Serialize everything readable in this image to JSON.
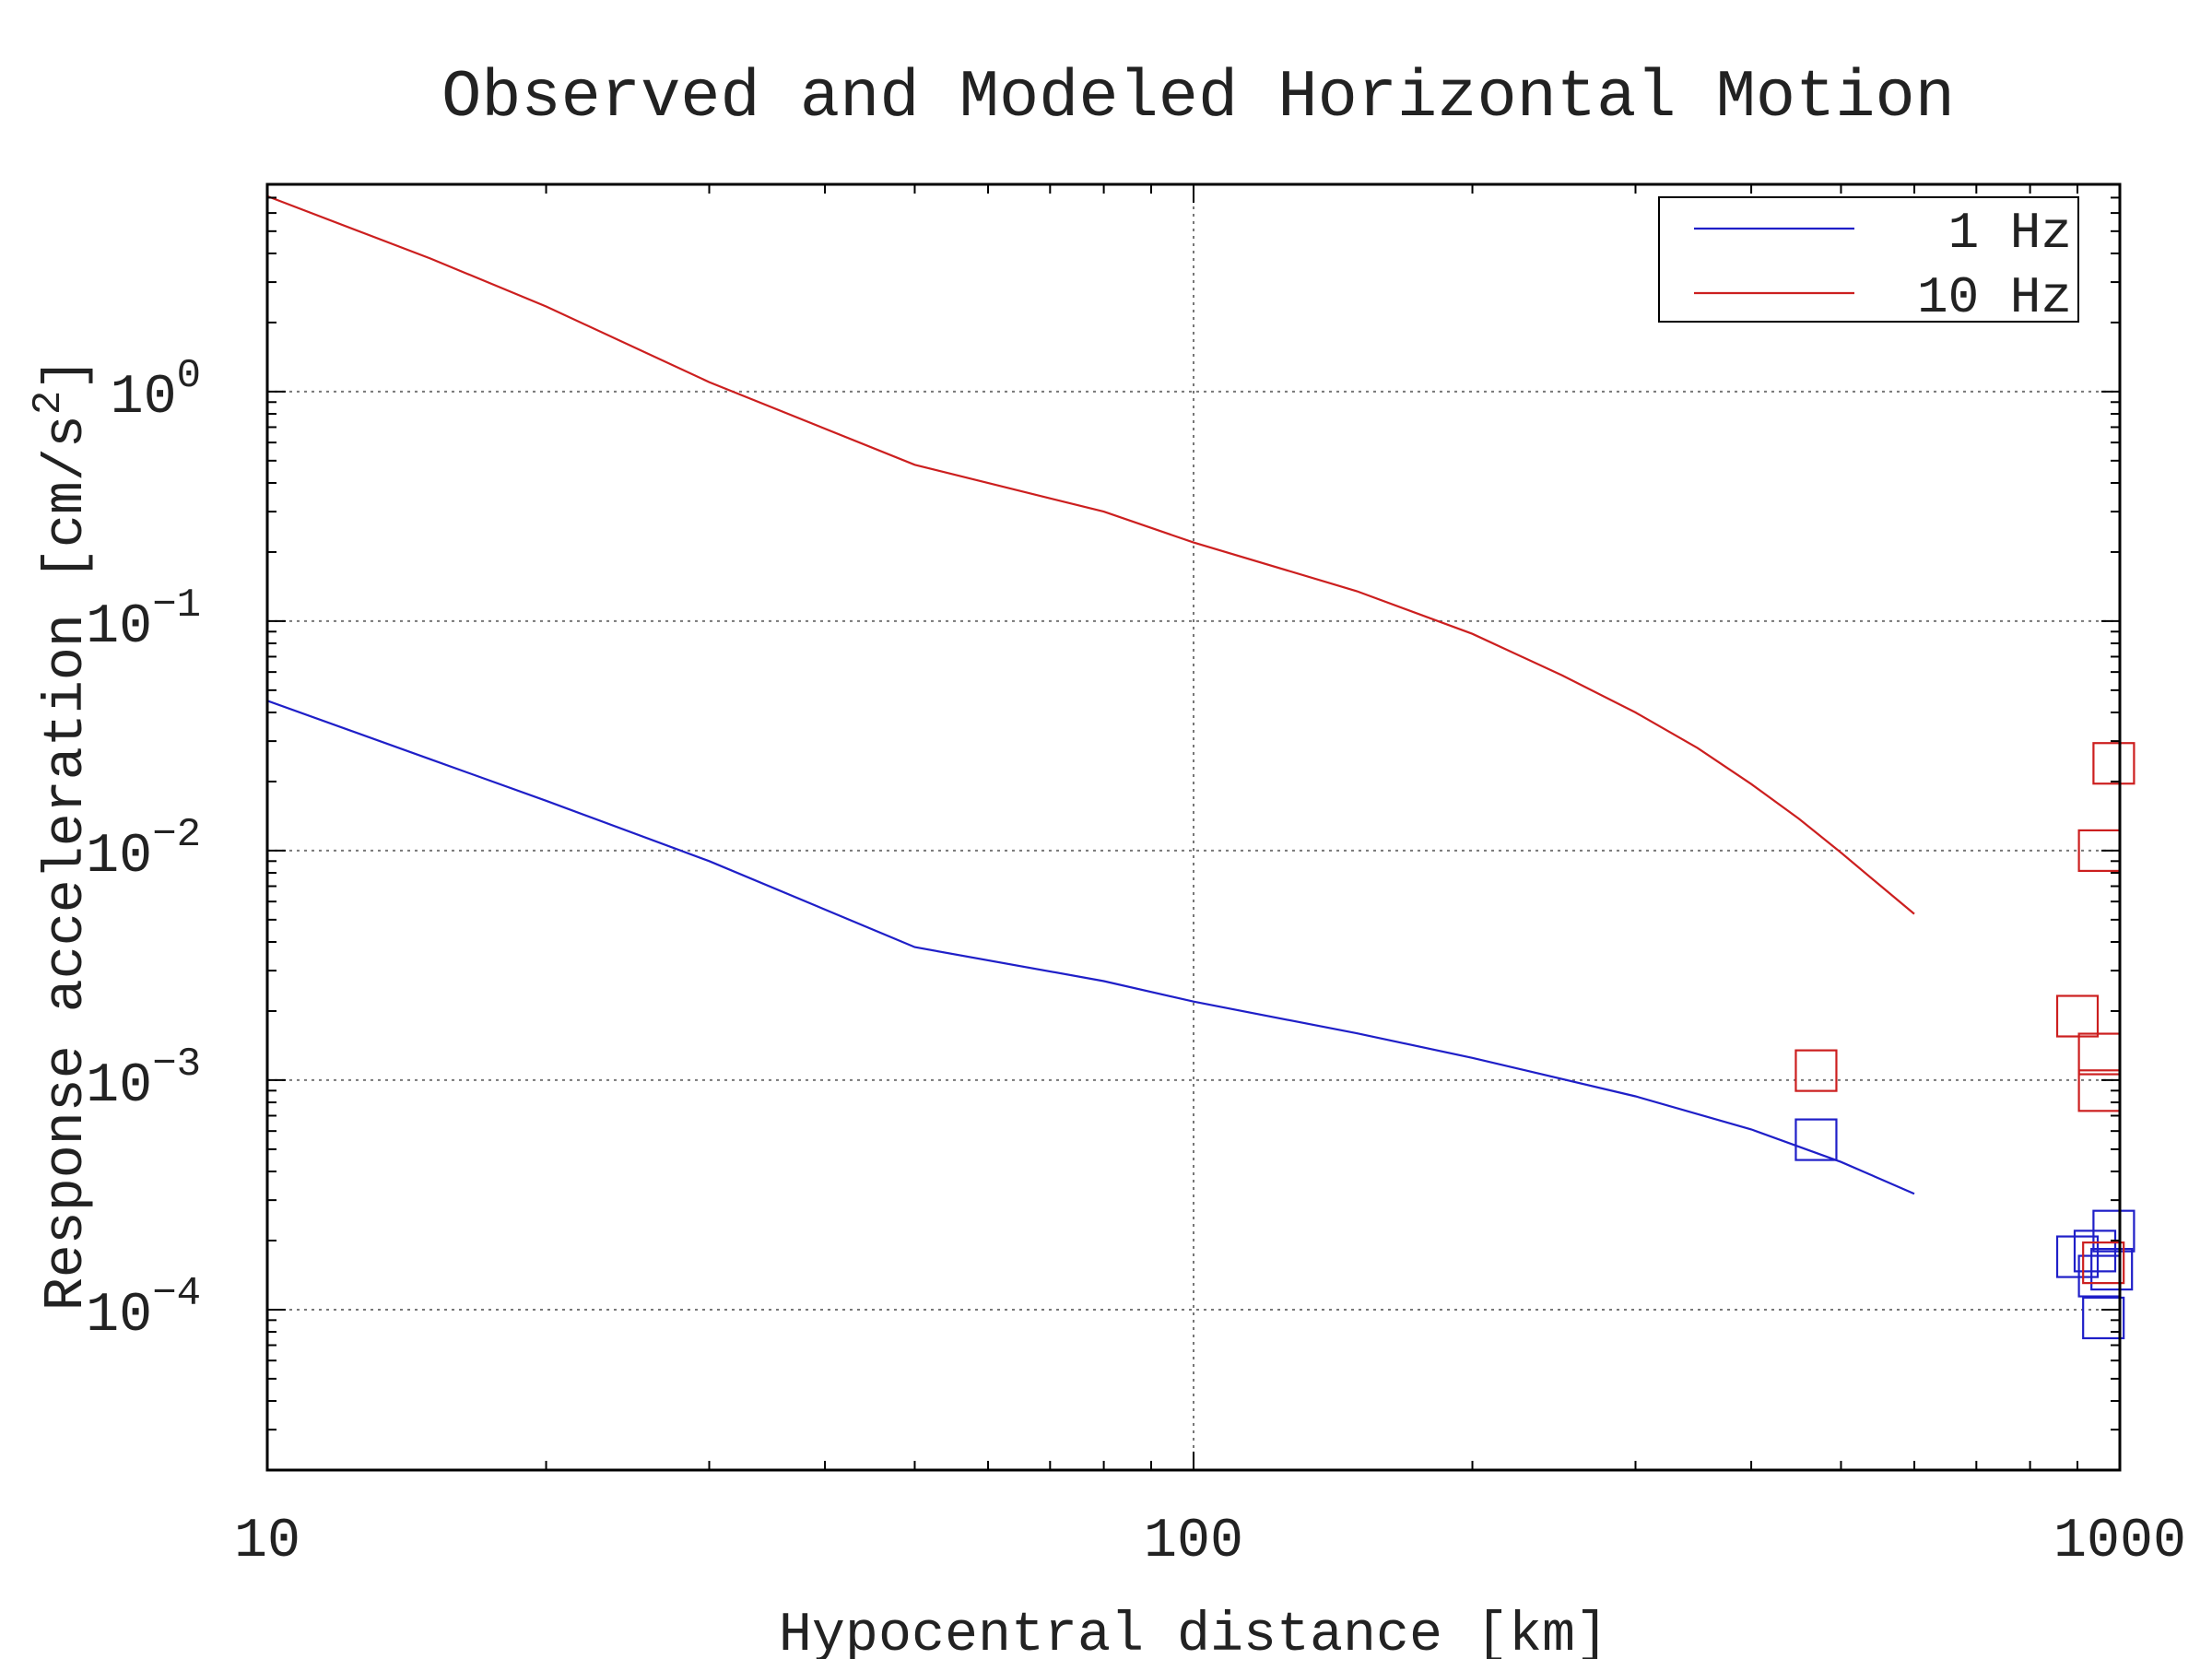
{
  "chart_data": {
    "type": "line",
    "title": "Observed and Modeled Horizontal Motion",
    "xlabel": "Hypocentral distance [km]",
    "ylabel": "Response acceleration [cm/s²]",
    "ylabel_text": "Response acceleration [cm/s",
    "ylabel_sup": "2",
    "ylabel_close": "]",
    "xscale": "log",
    "yscale": "log",
    "xlim": [
      10,
      1000
    ],
    "ylim": [
      2e-05,
      8
    ],
    "grid": true,
    "legend_position": "top-right",
    "x_ticks": [
      {
        "value": 10,
        "label": "10"
      },
      {
        "value": 100,
        "label": "100"
      },
      {
        "value": 1000,
        "label": "1000"
      }
    ],
    "y_ticks": [
      {
        "value": 1,
        "base": "10",
        "exp": "0"
      },
      {
        "value": 0.1,
        "base": "10",
        "exp": "−1"
      },
      {
        "value": 0.01,
        "base": "10",
        "exp": "−2"
      },
      {
        "value": 0.001,
        "base": "10",
        "exp": "−3"
      },
      {
        "value": 0.0001,
        "base": "10",
        "exp": "−4"
      }
    ],
    "series": [
      {
        "name": "1 Hz",
        "color": "#1f1fc8",
        "x": [
          10,
          15,
          20,
          30,
          50,
          80,
          100,
          150,
          200,
          300,
          400,
          500,
          600
        ],
        "y": [
          0.045,
          0.025,
          0.0165,
          0.009,
          0.0038,
          0.0027,
          0.0022,
          0.0016,
          0.00125,
          0.00085,
          0.00061,
          0.00044,
          0.00032
        ]
      },
      {
        "name": "10 Hz",
        "color": "#cc1f1f",
        "x": [
          10,
          15,
          20,
          30,
          50,
          80,
          100,
          150,
          200,
          250,
          300,
          350,
          400,
          450,
          500,
          550,
          600
        ],
        "y": [
          7.1,
          3.8,
          2.35,
          1.1,
          0.48,
          0.3,
          0.22,
          0.135,
          0.088,
          0.058,
          0.04,
          0.028,
          0.0195,
          0.0138,
          0.0098,
          0.0071,
          0.0053
        ]
      }
    ],
    "observed": [
      {
        "name": "1 Hz",
        "color": "#1f1fc8",
        "points": [
          {
            "x": 470,
            "y": 0.00055
          },
          {
            "x": 900,
            "y": 0.00017
          },
          {
            "x": 940,
            "y": 0.00018
          },
          {
            "x": 950,
            "y": 0.00014
          },
          {
            "x": 960,
            "y": 9.2e-05
          },
          {
            "x": 980,
            "y": 0.00015
          },
          {
            "x": 985,
            "y": 0.00022
          }
        ]
      },
      {
        "name": "10 Hz",
        "color": "#cc1f1f",
        "points": [
          {
            "x": 470,
            "y": 0.0011
          },
          {
            "x": 900,
            "y": 0.0019
          },
          {
            "x": 950,
            "y": 0.0013
          },
          {
            "x": 950,
            "y": 0.0009
          },
          {
            "x": 950,
            "y": 0.01
          },
          {
            "x": 960,
            "y": 0.00016
          },
          {
            "x": 985,
            "y": 0.024
          }
        ]
      }
    ],
    "legend": [
      {
        "label": "1 Hz",
        "color": "#1f1fc8"
      },
      {
        "label": "10 Hz",
        "color": "#cc1f1f"
      }
    ]
  }
}
